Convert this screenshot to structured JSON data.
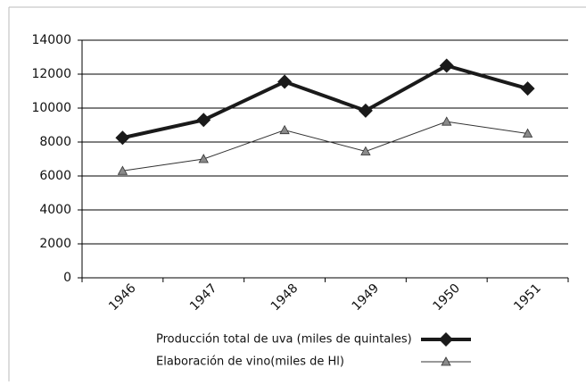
{
  "chart_data": {
    "type": "line",
    "categories": [
      "1946",
      "1947",
      "1948",
      "1949",
      "1950",
      "1951"
    ],
    "series": [
      {
        "name": "Producción total de uva (miles de quintales)",
        "color": "#1a1a1a",
        "width": 4,
        "marker": "diamond",
        "values": [
          8250,
          9300,
          11550,
          9850,
          12500,
          11150
        ]
      },
      {
        "name": "Elaboración de vino(miles de Hl)",
        "color": "#333333",
        "width": 1,
        "marker": "triangle",
        "values": [
          6300,
          7000,
          8700,
          7450,
          9200,
          8500
        ]
      }
    ],
    "ylim": [
      0,
      14000
    ],
    "yticks": [
      0,
      2000,
      4000,
      6000,
      8000,
      10000,
      12000,
      14000
    ],
    "grid": true,
    "legend": "bottom"
  }
}
